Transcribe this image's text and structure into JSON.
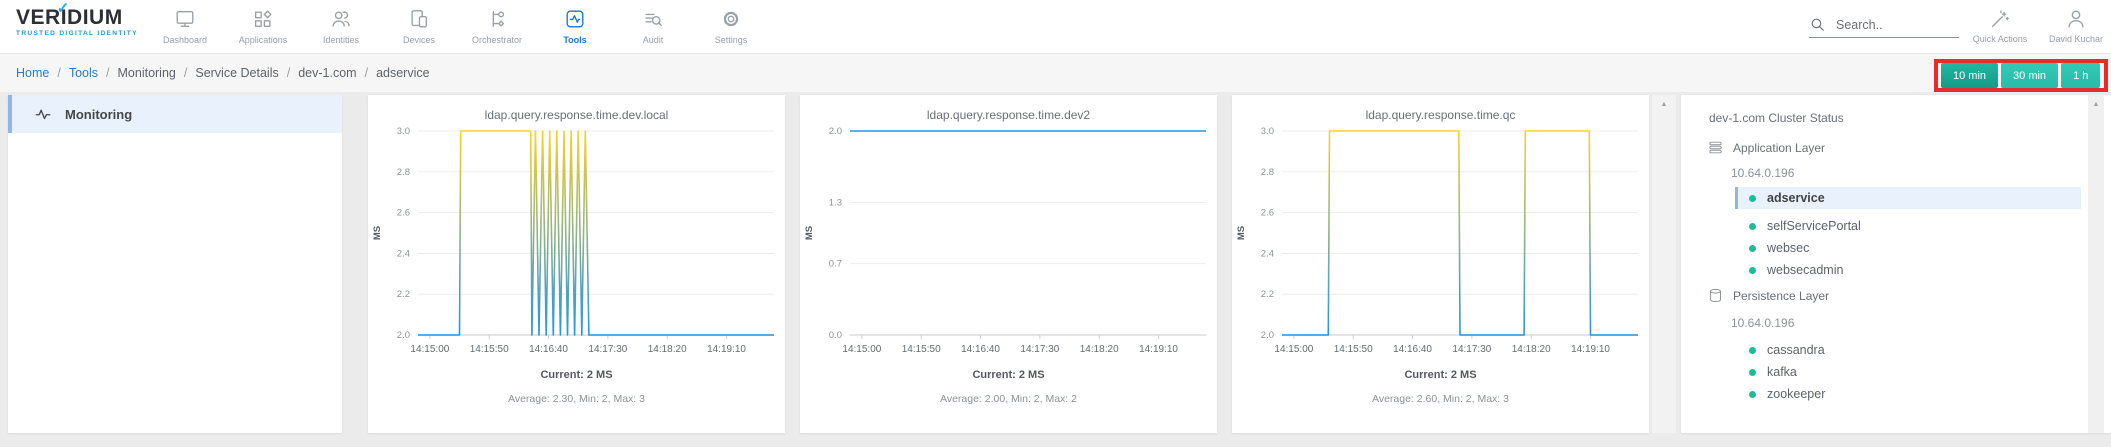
{
  "brand": {
    "name_pre": "VER",
    "name_i": "I",
    "name_post": "DIUM",
    "check": "✓",
    "tagline": "TRUSTED DIGITAL IDENTITY"
  },
  "nav": {
    "items": [
      {
        "label": "Dashboard",
        "icon": "monitor-icon",
        "active": false
      },
      {
        "label": "Applications",
        "icon": "grid-icon",
        "active": false
      },
      {
        "label": "Identities",
        "icon": "people-icon",
        "active": false
      },
      {
        "label": "Devices",
        "icon": "devices-icon",
        "active": false
      },
      {
        "label": "Orchestrator",
        "icon": "flow-icon",
        "active": false
      },
      {
        "label": "Tools",
        "icon": "pulse-square-icon",
        "active": true
      },
      {
        "label": "Audit",
        "icon": "list-search-icon",
        "active": false
      },
      {
        "label": "Settings",
        "icon": "gear-icon",
        "active": false
      }
    ]
  },
  "header": {
    "search_placeholder": "Search..",
    "quick_actions_label": "Quick Actions",
    "user_name": "David Kuchar"
  },
  "breadcrumb": {
    "items": [
      {
        "label": "Home",
        "link": true
      },
      {
        "label": "Tools",
        "link": true
      },
      {
        "label": "Monitoring",
        "link": false
      },
      {
        "label": "Service Details",
        "link": false
      },
      {
        "label": "dev-1.com",
        "link": false
      },
      {
        "label": "adservice",
        "link": false
      }
    ]
  },
  "time_range": {
    "buttons": [
      {
        "label": "10 min",
        "active": true
      },
      {
        "label": "30 min",
        "active": false
      },
      {
        "label": "1 h",
        "active": false
      }
    ],
    "annotation_color": "#e82c2c"
  },
  "sidebar": {
    "items": [
      {
        "label": "Monitoring",
        "icon": "pulse-icon",
        "active": true
      }
    ]
  },
  "cluster_panel": {
    "title": "dev-1.com Cluster Status",
    "status_dot_color": "#1abc9c",
    "groups": [
      {
        "label": "Application Layer",
        "icon": "layers-icon",
        "host": "10.64.0.196",
        "services": [
          {
            "name": "adservice",
            "selected": true
          },
          {
            "name": "selfServicePortal",
            "selected": false
          },
          {
            "name": "websec",
            "selected": false
          },
          {
            "name": "websecadmin",
            "selected": false
          }
        ]
      },
      {
        "label": "Persistence Layer",
        "icon": "database-icon",
        "host": "10.64.0.196",
        "services": [
          {
            "name": "cassandra",
            "selected": false
          },
          {
            "name": "kafka",
            "selected": false
          },
          {
            "name": "zookeeper",
            "selected": false
          }
        ]
      }
    ]
  },
  "chart_data": [
    {
      "type": "line",
      "title": "ldap.query.response.time.dev.local",
      "ylabel": "MS",
      "ylim": [
        2,
        3
      ],
      "y_ticks": [
        {
          "v": 2,
          "label": "2.0"
        },
        {
          "v": 2.2,
          "label": "2.2"
        },
        {
          "v": 2.4,
          "label": "2.4"
        },
        {
          "v": 2.6,
          "label": "2.6"
        },
        {
          "v": 2.8,
          "label": "2.8"
        },
        {
          "v": 3,
          "label": "3.0"
        }
      ],
      "x_domain_seconds": [
        0,
        300
      ],
      "x_ticks": [
        {
          "s": 10,
          "label": "14:15:00"
        },
        {
          "s": 60,
          "label": "14:15:50"
        },
        {
          "s": 110,
          "label": "14:16:40"
        },
        {
          "s": 160,
          "label": "14:17:30"
        },
        {
          "s": 210,
          "label": "14:18:20"
        },
        {
          "s": 260,
          "label": "14:19:10"
        }
      ],
      "points": [
        [
          0,
          2
        ],
        [
          35,
          2
        ],
        [
          36,
          3
        ],
        [
          95,
          3
        ],
        [
          96,
          2
        ],
        [
          99,
          3
        ],
        [
          102,
          2
        ],
        [
          105,
          3
        ],
        [
          108,
          2
        ],
        [
          111,
          3
        ],
        [
          114,
          2
        ],
        [
          117,
          3
        ],
        [
          120,
          2
        ],
        [
          123,
          3
        ],
        [
          126,
          2
        ],
        [
          129,
          3
        ],
        [
          132,
          2
        ],
        [
          135,
          3
        ],
        [
          138,
          2
        ],
        [
          141,
          3
        ],
        [
          144,
          2
        ],
        [
          300,
          2
        ]
      ],
      "line_color_top": "#f8d22a",
      "line_color_bottom": "#2596e3",
      "current_label": "Current: 2 MS",
      "stats_label": "Average: 2.30, Min: 2, Max: 3"
    },
    {
      "type": "line",
      "title": "ldap.query.response.time.dev2",
      "ylabel": "MS",
      "ylim": [
        0,
        2
      ],
      "y_ticks": [
        {
          "v": 0,
          "label": "0.0"
        },
        {
          "v": 0.7,
          "label": "0.7"
        },
        {
          "v": 1.3,
          "label": "1.3"
        },
        {
          "v": 2,
          "label": "2.0"
        }
      ],
      "x_domain_seconds": [
        0,
        300
      ],
      "x_ticks": [
        {
          "s": 10,
          "label": "14:15:00"
        },
        {
          "s": 60,
          "label": "14:15:50"
        },
        {
          "s": 110,
          "label": "14:16:40"
        },
        {
          "s": 160,
          "label": "14:17:30"
        },
        {
          "s": 210,
          "label": "14:18:20"
        },
        {
          "s": 260,
          "label": "14:19:10"
        }
      ],
      "points": [
        [
          0,
          2
        ],
        [
          300,
          2
        ]
      ],
      "line_color_top": "#2596e3",
      "line_color_bottom": "#2596e3",
      "current_label": "Current: 2 MS",
      "stats_label": "Average: 2.00, Min: 2, Max: 2"
    },
    {
      "type": "line",
      "title": "ldap.query.response.time.qc",
      "ylabel": "MS",
      "ylim": [
        2,
        3
      ],
      "y_ticks": [
        {
          "v": 2,
          "label": "2.0"
        },
        {
          "v": 2.2,
          "label": "2.2"
        },
        {
          "v": 2.4,
          "label": "2.4"
        },
        {
          "v": 2.6,
          "label": "2.6"
        },
        {
          "v": 2.8,
          "label": "2.8"
        },
        {
          "v": 3,
          "label": "3.0"
        }
      ],
      "x_domain_seconds": [
        0,
        300
      ],
      "x_ticks": [
        {
          "s": 10,
          "label": "14:15:00"
        },
        {
          "s": 60,
          "label": "14:15:50"
        },
        {
          "s": 110,
          "label": "14:16:40"
        },
        {
          "s": 160,
          "label": "14:17:30"
        },
        {
          "s": 210,
          "label": "14:18:20"
        },
        {
          "s": 260,
          "label": "14:19:10"
        }
      ],
      "points": [
        [
          0,
          2
        ],
        [
          39,
          2
        ],
        [
          40,
          3
        ],
        [
          149,
          3
        ],
        [
          150,
          2
        ],
        [
          204,
          2
        ],
        [
          205,
          3
        ],
        [
          259,
          3
        ],
        [
          260,
          2
        ],
        [
          300,
          2
        ]
      ],
      "line_color_top": "#f8d22a",
      "line_color_bottom": "#2596e3",
      "current_label": "Current: 2 MS",
      "stats_label": "Average: 2.60, Min: 2, Max: 3"
    }
  ],
  "colors": {
    "accent_blue": "#1a73e8",
    "link_blue": "#2a7cc7",
    "teal_button": "#2cc3b0",
    "teal_dot": "#1abc9c",
    "annotation_red": "#e82c2c",
    "chart_yellow": "#f8d22a",
    "chart_blue": "#2596e3"
  }
}
